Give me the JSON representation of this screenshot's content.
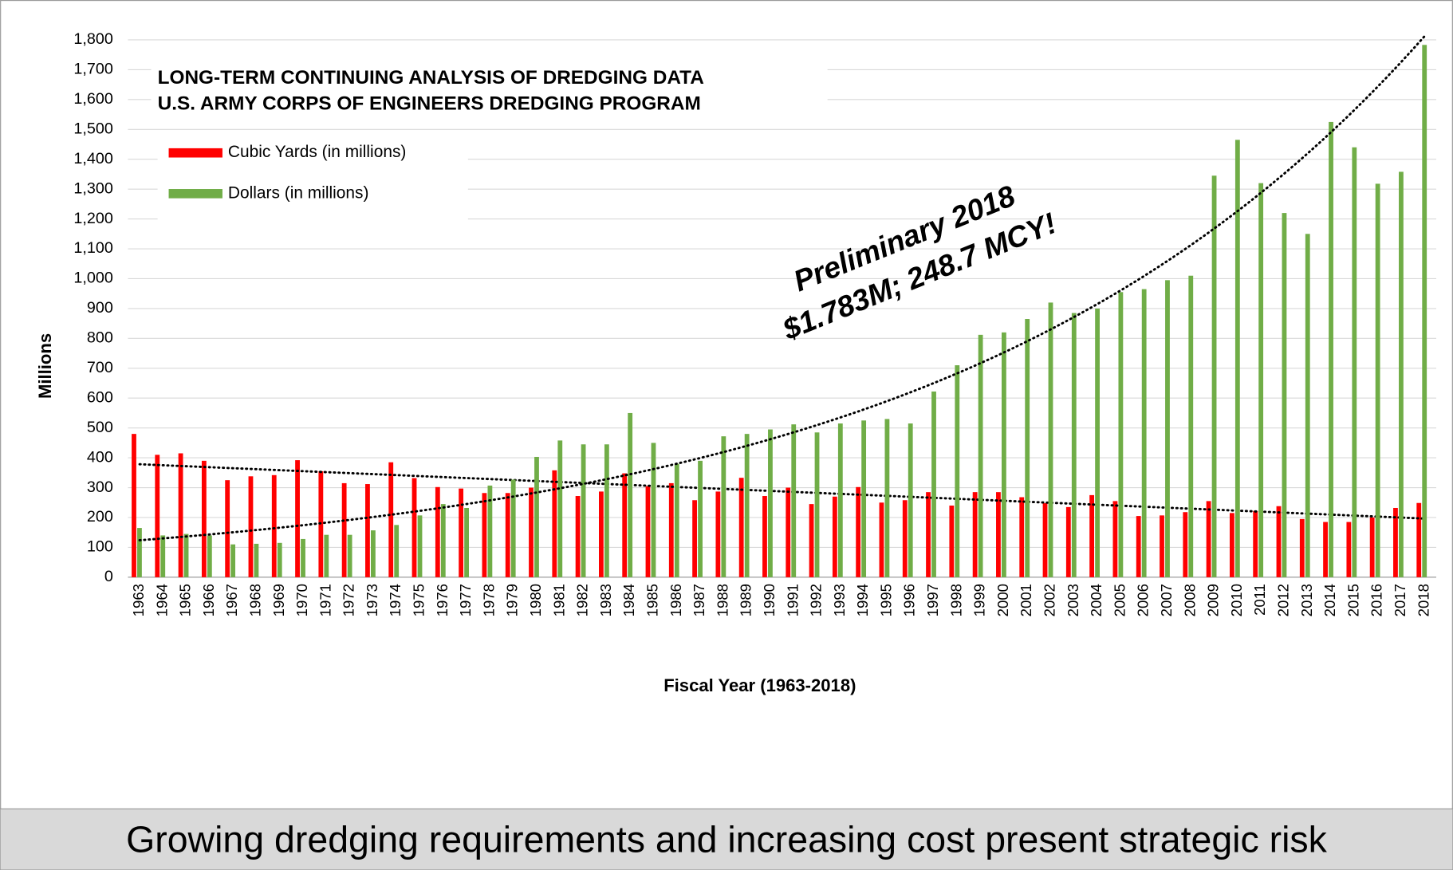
{
  "chart_data": {
    "type": "bar",
    "title": "LONG-TERM CONTINUING ANALYSIS OF DREDGING DATA",
    "subtitle": "U.S. ARMY CORPS OF ENGINEERS DREDGING PROGRAM",
    "annotation": [
      "Preliminary 2018",
      "$1.783M; 248.7 MCY!"
    ],
    "footer": "Growing dredging requirements and increasing cost present strategic risk",
    "xlabel": "Fiscal Year (1963-2018)",
    "ylabel": "Millions",
    "categories": [
      "1963",
      "1964",
      "1965",
      "1966",
      "1967",
      "1968",
      "1969",
      "1970",
      "1971",
      "1972",
      "1973",
      "1974",
      "1975",
      "1976",
      "1977",
      "1978",
      "1979",
      "1980",
      "1981",
      "1982",
      "1983",
      "1984",
      "1985",
      "1986",
      "1987",
      "1988",
      "1989",
      "1990",
      "1991",
      "1992",
      "1993",
      "1994",
      "1995",
      "1996",
      "1997",
      "1998",
      "1999",
      "2000",
      "2001",
      "2002",
      "2003",
      "2004",
      "2005",
      "2006",
      "2007",
      "2008",
      "2009",
      "2010",
      "2011",
      "2012",
      "2013",
      "2014",
      "2015",
      "2016",
      "2017",
      "2018"
    ],
    "series": [
      {
        "name": "Cubic Yards (in millions)",
        "color": "#ff0000",
        "trend": "linear",
        "values": [
          480,
          410,
          415,
          390,
          325,
          338,
          342,
          392,
          355,
          315,
          312,
          385,
          332,
          302,
          297,
          282,
          282,
          300,
          358,
          272,
          287,
          348,
          305,
          315,
          258,
          287,
          333,
          272,
          300,
          245,
          270,
          302,
          250,
          258,
          285,
          240,
          285,
          285,
          268,
          248,
          235,
          275,
          255,
          205,
          207,
          218,
          255,
          215,
          222,
          238,
          195,
          185,
          185,
          200,
          232,
          248.7
        ]
      },
      {
        "name": "Dollars (in millions)",
        "color": "#70ad47",
        "trend": "exponential",
        "values": [
          165,
          140,
          145,
          140,
          110,
          112,
          115,
          128,
          142,
          142,
          157,
          175,
          207,
          245,
          232,
          307,
          327,
          403,
          458,
          445,
          445,
          550,
          450,
          380,
          390,
          472,
          480,
          495,
          512,
          485,
          515,
          525,
          530,
          515,
          622,
          710,
          812,
          820,
          865,
          920,
          885,
          900,
          955,
          965,
          995,
          1010,
          1345,
          1465,
          1320,
          1220,
          1150,
          1525,
          1440,
          1318,
          1358,
          1783
        ]
      }
    ],
    "ylim": [
      0,
      1800
    ],
    "yticks": [
      0,
      100,
      200,
      300,
      400,
      500,
      600,
      700,
      800,
      900,
      {
        "value": 1000,
        "label": "1,000"
      },
      {
        "value": 1100,
        "label": "1,100"
      },
      {
        "value": 1200,
        "label": "1,200"
      },
      {
        "value": 1300,
        "label": "1,300"
      },
      {
        "value": 1400,
        "label": "1,400"
      },
      {
        "value": 1500,
        "label": "1,500"
      },
      {
        "value": 1600,
        "label": "1,600"
      },
      {
        "value": 1700,
        "label": "1,700"
      },
      {
        "value": 1800,
        "label": "1,800"
      }
    ],
    "grid": true,
    "legend": "upper left"
  }
}
